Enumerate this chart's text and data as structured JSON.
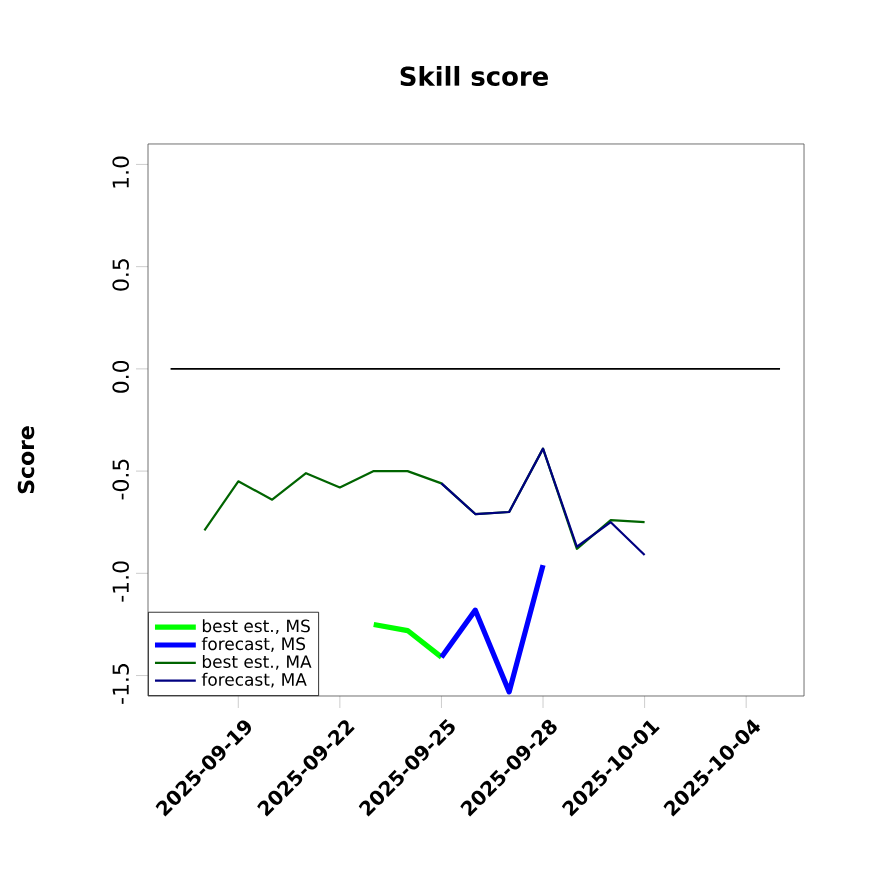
{
  "chart_data": {
    "type": "line",
    "title": "Skill score",
    "ylabel": "Score",
    "xlim": [
      "2025-09-16T08:00",
      "2025-10-05T17:00"
    ],
    "ylim": [
      -1.6,
      1.1
    ],
    "xticks": [
      "2025-09-19",
      "2025-09-22",
      "2025-09-25",
      "2025-09-28",
      "2025-10-01",
      "2025-10-04"
    ],
    "yticks": [
      {
        "value": -1.5,
        "label": "-1.5"
      },
      {
        "value": -1.0,
        "label": "-1.0"
      },
      {
        "value": -0.5,
        "label": "-0.5"
      },
      {
        "value": 0,
        "label": "0.0"
      },
      {
        "value": 0.5,
        "label": "0.5"
      },
      {
        "value": 1.0,
        "label": "1.0"
      }
    ],
    "grid": false,
    "legend": "bottom left",
    "marker": "none",
    "line_style": "solid",
    "series": [
      {
        "name": "best est., MS",
        "color": "#00ff00",
        "x": [
          "2025-09-23",
          "2025-09-24",
          "2025-09-25"
        ],
        "values": [
          -1.25,
          -1.28,
          -1.41
        ]
      },
      {
        "name": "forecast, MS",
        "color": "#0000ff",
        "x": [
          "2025-09-25",
          "2025-09-26",
          "2025-09-27",
          "2025-09-28"
        ],
        "values": [
          -1.41,
          -1.18,
          -1.58,
          -0.96
        ]
      },
      {
        "name": "best est., MA",
        "color": "#006400",
        "x": [
          "2025-09-18",
          "2025-09-19",
          "2025-09-20",
          "2025-09-21",
          "2025-09-22",
          "2025-09-23",
          "2025-09-24",
          "2025-09-25",
          "2025-09-26",
          "2025-09-27",
          "2025-09-28",
          "2025-09-29",
          "2025-09-30",
          "2025-10-01"
        ],
        "values": [
          -0.79,
          -0.55,
          -0.64,
          -0.51,
          -0.58,
          -0.5,
          -0.5,
          -0.56,
          -0.71,
          -0.7,
          -0.39,
          -0.88,
          -0.74,
          -0.75
        ]
      },
      {
        "name": "forecast, MA",
        "color": "#000080",
        "x": [
          "2025-09-25",
          "2025-09-26",
          "2025-09-27",
          "2025-09-28",
          "2025-09-29",
          "2025-09-30",
          "2025-10-01"
        ],
        "values": [
          -0.56,
          -0.71,
          -0.7,
          -0.39,
          -0.87,
          -0.75,
          -0.91
        ]
      },
      {
        "color": "#000000",
        "x": [
          "2025-09-17",
          "2025-10-05"
        ],
        "values": [
          0,
          0
        ]
      }
    ]
  }
}
